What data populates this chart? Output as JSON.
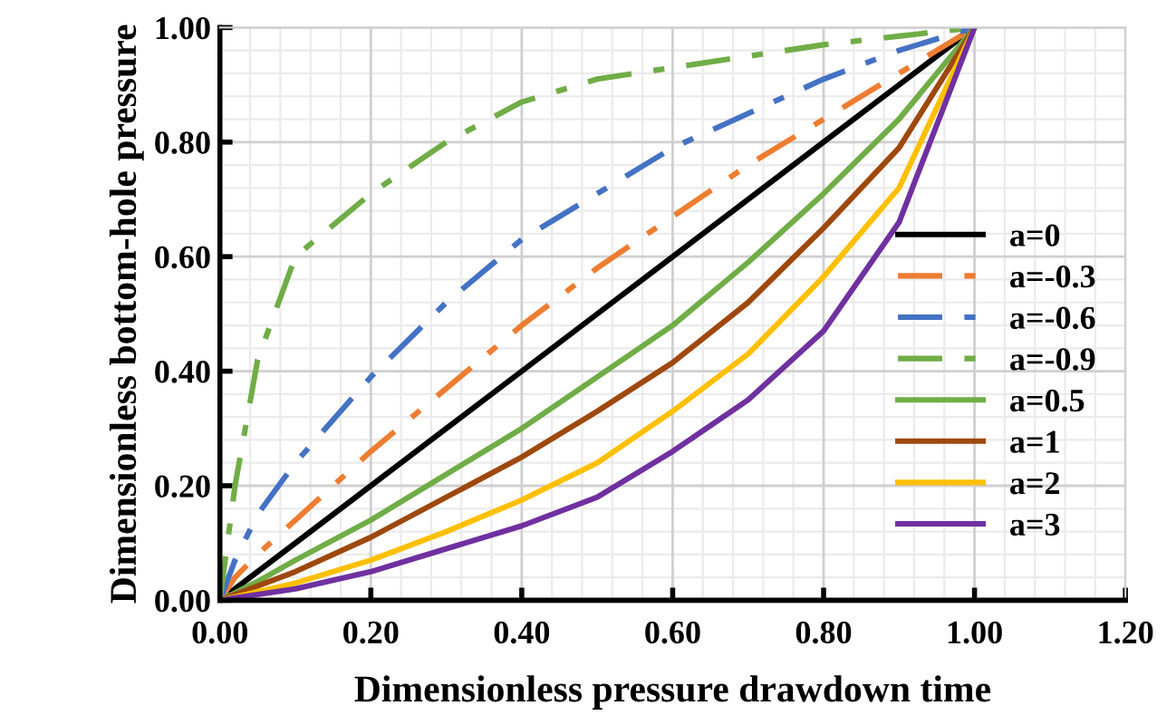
{
  "chart_data": {
    "type": "line",
    "xlabel": "Dimensionless pressure drawdown time",
    "ylabel": "Dimensionless bottom-hole pressure",
    "xlim": [
      0,
      1.2
    ],
    "ylim": [
      0,
      1
    ],
    "xticks": [
      {
        "value": 0,
        "label": "0.00"
      },
      {
        "value": 0.2,
        "label": "0.20"
      },
      {
        "value": 0.4,
        "label": "0.40"
      },
      {
        "value": 0.6,
        "label": "0.60"
      },
      {
        "value": 0.8,
        "label": "0.80"
      },
      {
        "value": 1.0,
        "label": "1.00"
      },
      {
        "value": 1.2,
        "label": "1.20"
      }
    ],
    "yticks": [
      {
        "value": 0,
        "label": "0.00"
      },
      {
        "value": 0.2,
        "label": "0.20"
      },
      {
        "value": 0.4,
        "label": "0.40"
      },
      {
        "value": 0.6,
        "label": "0.60"
      },
      {
        "value": 0.8,
        "label": "0.80"
      },
      {
        "value": 1.0,
        "label": "1.00"
      }
    ],
    "grid": true,
    "legend": "right",
    "marker": "none",
    "x": [
      0,
      0.02,
      0.05,
      0.1,
      0.2,
      0.3,
      0.4,
      0.5,
      0.6,
      0.7,
      0.8,
      0.9,
      1.0
    ],
    "series": [
      {
        "name": "a=0",
        "color": "#000000",
        "line_style": "solid",
        "values": [
          0,
          0.02,
          0.05,
          0.1,
          0.2,
          0.3,
          0.4,
          0.5,
          0.6,
          0.7,
          0.8,
          0.9,
          1.0
        ]
      },
      {
        "name": "a=-0.3",
        "color": "#ed7d31",
        "line_style": "dashdot",
        "values": [
          0,
          0.04,
          0.08,
          0.14,
          0.26,
          0.37,
          0.48,
          0.58,
          0.67,
          0.76,
          0.84,
          0.92,
          1.0
        ]
      },
      {
        "name": "a=-0.6",
        "color": "#4472c4",
        "line_style": "dashdot",
        "values": [
          0,
          0.07,
          0.15,
          0.24,
          0.39,
          0.52,
          0.63,
          0.71,
          0.79,
          0.85,
          0.91,
          0.96,
          1.0
        ]
      },
      {
        "name": "a=-0.9",
        "color": "#70ad47",
        "line_style": "dashdot",
        "values": [
          0,
          0.2,
          0.42,
          0.6,
          0.71,
          0.8,
          0.87,
          0.91,
          0.93,
          0.95,
          0.97,
          0.985,
          1.0
        ]
      },
      {
        "name": "a=0.5",
        "color": "#70ad47",
        "line_style": "solid",
        "values": [
          0,
          0.013,
          0.033,
          0.07,
          0.14,
          0.22,
          0.3,
          0.39,
          0.48,
          0.59,
          0.71,
          0.84,
          1.0
        ]
      },
      {
        "name": "a=1",
        "color": "#9e480e",
        "line_style": "solid",
        "values": [
          0,
          0.01,
          0.025,
          0.05,
          0.11,
          0.18,
          0.25,
          0.33,
          0.415,
          0.52,
          0.65,
          0.79,
          1.0
        ]
      },
      {
        "name": "a=2",
        "color": "#ffc000",
        "line_style": "solid",
        "values": [
          0,
          0.006,
          0.015,
          0.03,
          0.07,
          0.12,
          0.175,
          0.24,
          0.33,
          0.43,
          0.565,
          0.72,
          1.0
        ]
      },
      {
        "name": "a=3",
        "color": "#7030a0",
        "line_style": "solid",
        "values": [
          0,
          0.004,
          0.01,
          0.02,
          0.05,
          0.09,
          0.13,
          0.18,
          0.26,
          0.35,
          0.47,
          0.66,
          1.0
        ]
      }
    ]
  }
}
